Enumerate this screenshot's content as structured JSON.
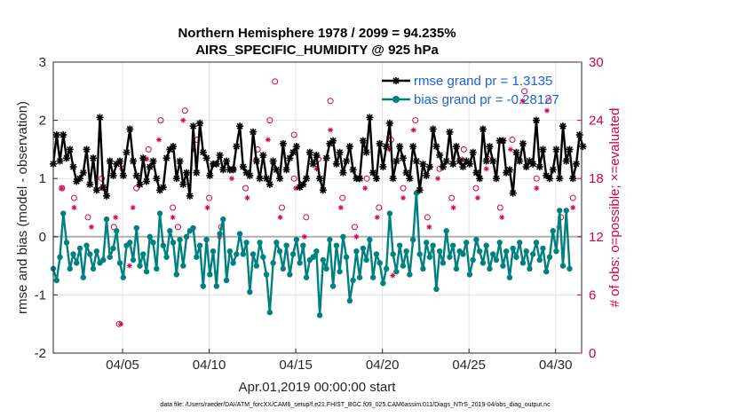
{
  "chart_data": {
    "type": "line",
    "title_line1": "Northern Hemisphere 1978 / 2099 = 94.235%",
    "title_line2": "AIRS_SPECIFIC_HUMIDITY @ 925 hPa",
    "xlabel": "Apr.01,2019 00:00:00 start",
    "ylabel": "rmse and bias (model - observation)",
    "ylabel_right": "# of obs: o=possible; ×=evaluated",
    "footnote": "data file: /Users/raeder/DAI/ATM_forcXX/CAM6_setup/f.e21.FHIST_BGC.f09_025.CAM6assim.011/Diags_NTrS_2019-04/obs_diag_output.nc",
    "xlim": [
      1,
      31.5
    ],
    "ylim": [
      -2,
      3
    ],
    "ylim_right": [
      0,
      30
    ],
    "x_ticks": [
      5,
      10,
      15,
      20,
      25,
      30
    ],
    "x_tick_labels": [
      "04/05",
      "04/10",
      "04/15",
      "04/20",
      "04/25",
      "04/30"
    ],
    "y_ticks": [
      -2,
      -1,
      0,
      1,
      2,
      3
    ],
    "y_tick_labels": [
      "-2",
      "-1",
      "0",
      "1",
      "2",
      "3"
    ],
    "y_right_ticks": [
      0,
      6,
      12,
      18,
      24,
      30
    ],
    "y_right_tick_labels": [
      "0",
      "6",
      "12",
      "18",
      "24",
      "30"
    ],
    "grid": true,
    "legend_position": "top-right",
    "colors": {
      "rmse": "#000000",
      "bias": "#00807f",
      "obs": "#d6004f",
      "zero_line": "#b0b0b0",
      "legend_text": "#1f5fe0"
    },
    "series": [
      {
        "name": "rmse",
        "legend_label": "rmse grand pr = 1.3135",
        "values": [
          1.25,
          1.75,
          1.3,
          1.75,
          1.35,
          1.5,
          1.2,
          0.95,
          1.0,
          1.1,
          1.5,
          0.9,
          1.35,
          0.8,
          2.05,
          0.85,
          0.7,
          1.3,
          1.05,
          1.25,
          1.3,
          1.05,
          1.45,
          1.85,
          1.3,
          1.05,
          0.9,
          1.35,
          0.95,
          1.2,
          1.3,
          1.0,
          0.8,
          0.85,
          1.35,
          1.5,
          1.55,
          1.0,
          1.3,
          0.9,
          1.1,
          0.7,
          1.9,
          1.1,
          1.95,
          1.45,
          1.35,
          1.05,
          1.25,
          1.25,
          1.4,
          1.15,
          1.3,
          1.15,
          1.15,
          1.55,
          1.9,
          1.2,
          1.1,
          1.05,
          1.8,
          1.3,
          1.0,
          1.4,
          1.0,
          0.9,
          1.3,
          1.15,
          1.0,
          1.6,
          1.15,
          1.35,
          1.45,
          1.55,
          0.85,
          0.9,
          1.0,
          1.45,
          1.25,
          1.4,
          1.0,
          0.8,
          1.35,
          1.6,
          1.65,
          1.25,
          1.45,
          1.1,
          1.3,
          1.55,
          1.15,
          1.0,
          1.0,
          1.65,
          1.45,
          2.05,
          1.1,
          1.0,
          1.6,
          1.2,
          1.55,
          1.95,
          1.0,
          1.3,
          1.55,
          1.35,
          1.1,
          1.0,
          1.55,
          1.3,
          0.8,
          1.25,
          1.05,
          1.2,
          1.85,
          1.55,
          1.4,
          1.2,
          1.3,
          1.8,
          1.25,
          1.55,
          1.3,
          1.2,
          1.3,
          1.25,
          1.45,
          1.1,
          1.0,
          1.85,
          1.3,
          1.55,
          1.3,
          1.0,
          1.65,
          1.65,
          1.1,
          1.15,
          0.75,
          1.45,
          1.3,
          1.6,
          1.2,
          1.3,
          1.25,
          2.0,
          1.2,
          1.5,
          1.05,
          1.0,
          1.15,
          1.5,
          1.0,
          1.9,
          1.3,
          1.5,
          1.0,
          1.25,
          1.75,
          1.55
        ],
        "x_start": 1.0,
        "x_step": 0.1923
      },
      {
        "name": "bias",
        "legend_label": "bias grand pr = -0.28127",
        "values": [
          -0.55,
          -0.75,
          -0.35,
          0.4,
          -0.1,
          -0.55,
          -0.3,
          -0.45,
          -0.2,
          -0.7,
          -0.15,
          -0.3,
          -0.55,
          -0.25,
          -0.45,
          -0.4,
          0.3,
          -0.35,
          -0.2,
          0.1,
          -0.45,
          -0.7,
          -0.15,
          -0.1,
          -0.4,
          0.15,
          -0.5,
          -0.3,
          -0.6,
          0.0,
          -0.1,
          -0.55,
          0.4,
          -0.15,
          -0.35,
          0.1,
          -0.1,
          -0.65,
          -0.05,
          -0.5,
          0.0,
          0.1,
          0.15,
          -0.35,
          -0.15,
          -0.85,
          -0.05,
          -0.65,
          -0.25,
          -0.85,
          0.05,
          0.3,
          -0.75,
          -0.25,
          -0.45,
          -0.3,
          0.05,
          -0.3,
          -0.1,
          -0.95,
          -0.3,
          -0.5,
          -0.1,
          -0.35,
          -0.65,
          -1.3,
          -0.45,
          -0.1,
          -0.25,
          -0.55,
          -0.15,
          -0.65,
          -0.3,
          -0.05,
          -0.45,
          -0.15,
          -0.7,
          -0.4,
          -0.35,
          -0.25,
          -1.35,
          -0.4,
          -0.55,
          -0.05,
          -0.85,
          -0.15,
          -0.6,
          0.0,
          -0.35,
          -1.1,
          -0.75,
          -0.25,
          -0.7,
          -0.2,
          -0.4,
          -0.05,
          -0.7,
          -0.3,
          -0.45,
          -0.8,
          -0.55,
          0.4,
          -0.3,
          -0.6,
          -0.15,
          -0.5,
          -0.25,
          -0.65,
          -0.05,
          0.75,
          -0.3,
          -0.55,
          -0.1,
          -0.35,
          -0.15,
          -0.9,
          -0.25,
          -0.45,
          0.1,
          -0.35,
          -0.15,
          -0.55,
          -0.25,
          -0.3,
          -0.1,
          -0.65,
          -0.4,
          -0.05,
          -0.25,
          -0.45,
          -0.15,
          -0.55,
          -0.3,
          -0.4,
          -0.1,
          -0.5,
          -0.25,
          -0.7,
          -0.2,
          -0.35,
          -0.1,
          -0.45,
          -0.25,
          -0.55,
          -0.3,
          -0.1,
          -0.4,
          -0.2,
          -0.6,
          -0.35,
          0.1,
          -0.25,
          0.45,
          -0.5,
          0.45,
          -0.55
        ],
        "x_start": 1.0,
        "x_step": 0.1923
      }
    ],
    "obs_possible": [
      {
        "x": 1.5,
        "y": 17
      },
      {
        "x": 2.2,
        "y": 16
      },
      {
        "x": 3.0,
        "y": 14
      },
      {
        "x": 3.8,
        "y": 18
      },
      {
        "x": 4.5,
        "y": 13
      },
      {
        "x": 5.0,
        "y": 19
      },
      {
        "x": 5.8,
        "y": 17
      },
      {
        "x": 6.5,
        "y": 21
      },
      {
        "x": 7.2,
        "y": 24
      },
      {
        "x": 7.9,
        "y": 15
      },
      {
        "x": 8.6,
        "y": 25
      },
      {
        "x": 9.3,
        "y": 22
      },
      {
        "x": 10.0,
        "y": 16
      },
      {
        "x": 10.7,
        "y": 13
      },
      {
        "x": 11.4,
        "y": 19
      },
      {
        "x": 12.1,
        "y": 17
      },
      {
        "x": 12.8,
        "y": 21
      },
      {
        "x": 13.5,
        "y": 24
      },
      {
        "x": 14.2,
        "y": 15
      },
      {
        "x": 14.9,
        "y": 18
      },
      {
        "x": 15.6,
        "y": 14
      },
      {
        "x": 16.3,
        "y": 20
      },
      {
        "x": 17.0,
        "y": 26
      },
      {
        "x": 17.7,
        "y": 16
      },
      {
        "x": 18.4,
        "y": 13
      },
      {
        "x": 19.1,
        "y": 18
      },
      {
        "x": 19.8,
        "y": 15
      },
      {
        "x": 20.5,
        "y": 22
      },
      {
        "x": 21.2,
        "y": 17
      },
      {
        "x": 21.9,
        "y": 24
      },
      {
        "x": 22.6,
        "y": 14
      },
      {
        "x": 23.3,
        "y": 19
      },
      {
        "x": 24.0,
        "y": 16
      },
      {
        "x": 24.7,
        "y": 21
      },
      {
        "x": 25.4,
        "y": 17
      },
      {
        "x": 26.1,
        "y": 20
      },
      {
        "x": 26.8,
        "y": 15
      },
      {
        "x": 27.5,
        "y": 22
      },
      {
        "x": 28.2,
        "y": 27
      },
      {
        "x": 28.9,
        "y": 18
      },
      {
        "x": 29.6,
        "y": 26
      },
      {
        "x": 30.3,
        "y": 14
      },
      {
        "x": 31.0,
        "y": 16
      },
      {
        "x": 14.9,
        "y": 22.5
      },
      {
        "x": 13.8,
        "y": 28
      },
      {
        "x": 4.8,
        "y": 3
      },
      {
        "x": 8.2,
        "y": 13
      }
    ],
    "obs_evaluated": [
      {
        "x": 1.5,
        "y": 17
      },
      {
        "x": 2.2,
        "y": 15
      },
      {
        "x": 3.2,
        "y": 13
      },
      {
        "x": 3.8,
        "y": 17
      },
      {
        "x": 4.6,
        "y": 14
      },
      {
        "x": 4.9,
        "y": 3
      },
      {
        "x": 5.6,
        "y": 15
      },
      {
        "x": 6.4,
        "y": 20
      },
      {
        "x": 7.1,
        "y": 22
      },
      {
        "x": 7.9,
        "y": 14
      },
      {
        "x": 8.5,
        "y": 24
      },
      {
        "x": 9.1,
        "y": 21
      },
      {
        "x": 9.9,
        "y": 15
      },
      {
        "x": 10.6,
        "y": 12
      },
      {
        "x": 11.3,
        "y": 18
      },
      {
        "x": 12.2,
        "y": 16
      },
      {
        "x": 12.7,
        "y": 20
      },
      {
        "x": 13.4,
        "y": 22
      },
      {
        "x": 14.1,
        "y": 14
      },
      {
        "x": 15.0,
        "y": 17
      },
      {
        "x": 15.5,
        "y": 12
      },
      {
        "x": 16.2,
        "y": 19
      },
      {
        "x": 17.0,
        "y": 23
      },
      {
        "x": 17.6,
        "y": 15
      },
      {
        "x": 18.5,
        "y": 12
      },
      {
        "x": 19.0,
        "y": 17
      },
      {
        "x": 19.7,
        "y": 14
      },
      {
        "x": 20.4,
        "y": 21
      },
      {
        "x": 21.2,
        "y": 16
      },
      {
        "x": 21.8,
        "y": 23
      },
      {
        "x": 22.7,
        "y": 13
      },
      {
        "x": 23.2,
        "y": 18
      },
      {
        "x": 24.1,
        "y": 15
      },
      {
        "x": 24.6,
        "y": 20
      },
      {
        "x": 25.5,
        "y": 16
      },
      {
        "x": 26.0,
        "y": 19
      },
      {
        "x": 26.9,
        "y": 14
      },
      {
        "x": 27.4,
        "y": 21
      },
      {
        "x": 28.1,
        "y": 26
      },
      {
        "x": 28.9,
        "y": 17
      },
      {
        "x": 29.5,
        "y": 25
      },
      {
        "x": 30.2,
        "y": 13
      },
      {
        "x": 31.0,
        "y": 15
      },
      {
        "x": 5.4,
        "y": 9
      },
      {
        "x": 20.6,
        "y": 8
      }
    ]
  }
}
